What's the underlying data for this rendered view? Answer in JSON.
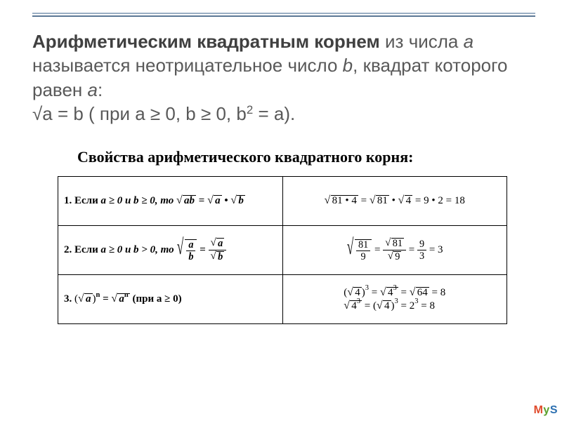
{
  "rule_colors": {
    "top": "#9aaec4",
    "bottom": "#5b7795"
  },
  "heading": {
    "strong": "Арифметическим квадратным корнем",
    "t1": " из числа ",
    "a1": "a",
    "t2": " называется неотрицательное число ",
    "b1": "b",
    "t3": ", квадрат которого равен ",
    "a2": "a",
    "t4": ":",
    "line2_pre": "√a = b ( при a ≥ 0, b ≥ 0, b",
    "sup": "2",
    "line2_post": " = a)."
  },
  "subheading": "Свойства арифметического квадратного корня:",
  "rows": [
    {
      "rule_pre": "1. Если ",
      "rule_cond": "a ≥ 0 и b ≥ 0,  то ",
      "rule_lhs": "ab",
      "rule_mid": " = ",
      "rule_r1": "a",
      "rule_dot": " • ",
      "rule_r2": "b",
      "ex_full": "81 • 4",
      "ex_eq1": " = ",
      "ex_p1": "81",
      "ex_dot": " • ",
      "ex_p2": "4",
      "ex_tail": " = 9 • 2 = 18"
    },
    {
      "rule_pre": "2. Если ",
      "rule_cond": "a ≥ 0 и b > 0,  то ",
      "frac_na": "a",
      "frac_da": "b",
      "frac_nb": "a",
      "frac_db": "b",
      "ex_n": "81",
      "ex_d": "9",
      "ex_rn": "81",
      "ex_rd": "9",
      "ex_vn": "9",
      "ex_vd": "3",
      "ex_res": " = 3"
    },
    {
      "rule_pre": "3. ",
      "exp_n": "n",
      "rule_base": "a",
      "rule_eq": " = ",
      "rule_rhs": "a",
      "rule_rhs_sup": "n",
      "rule_post": "  (при a ≥ 0)",
      "ex1_base": "4",
      "ex1_pow": "3",
      "ex1_mid": "4",
      "ex1_midpow": "3",
      "ex1_v": "64",
      "ex1_res": " = 8",
      "ex2_in": "4",
      "ex2_inpow": "3",
      "ex2_b": "4",
      "ex2_bpow": "3",
      "ex2_v": "2",
      "ex2_vpow": "3",
      "ex2_res": " = 8"
    }
  ],
  "watermark": {
    "text": "MyS",
    "colors": [
      "#e04a2b",
      "#5aa02c",
      "#2b6fb0"
    ]
  }
}
